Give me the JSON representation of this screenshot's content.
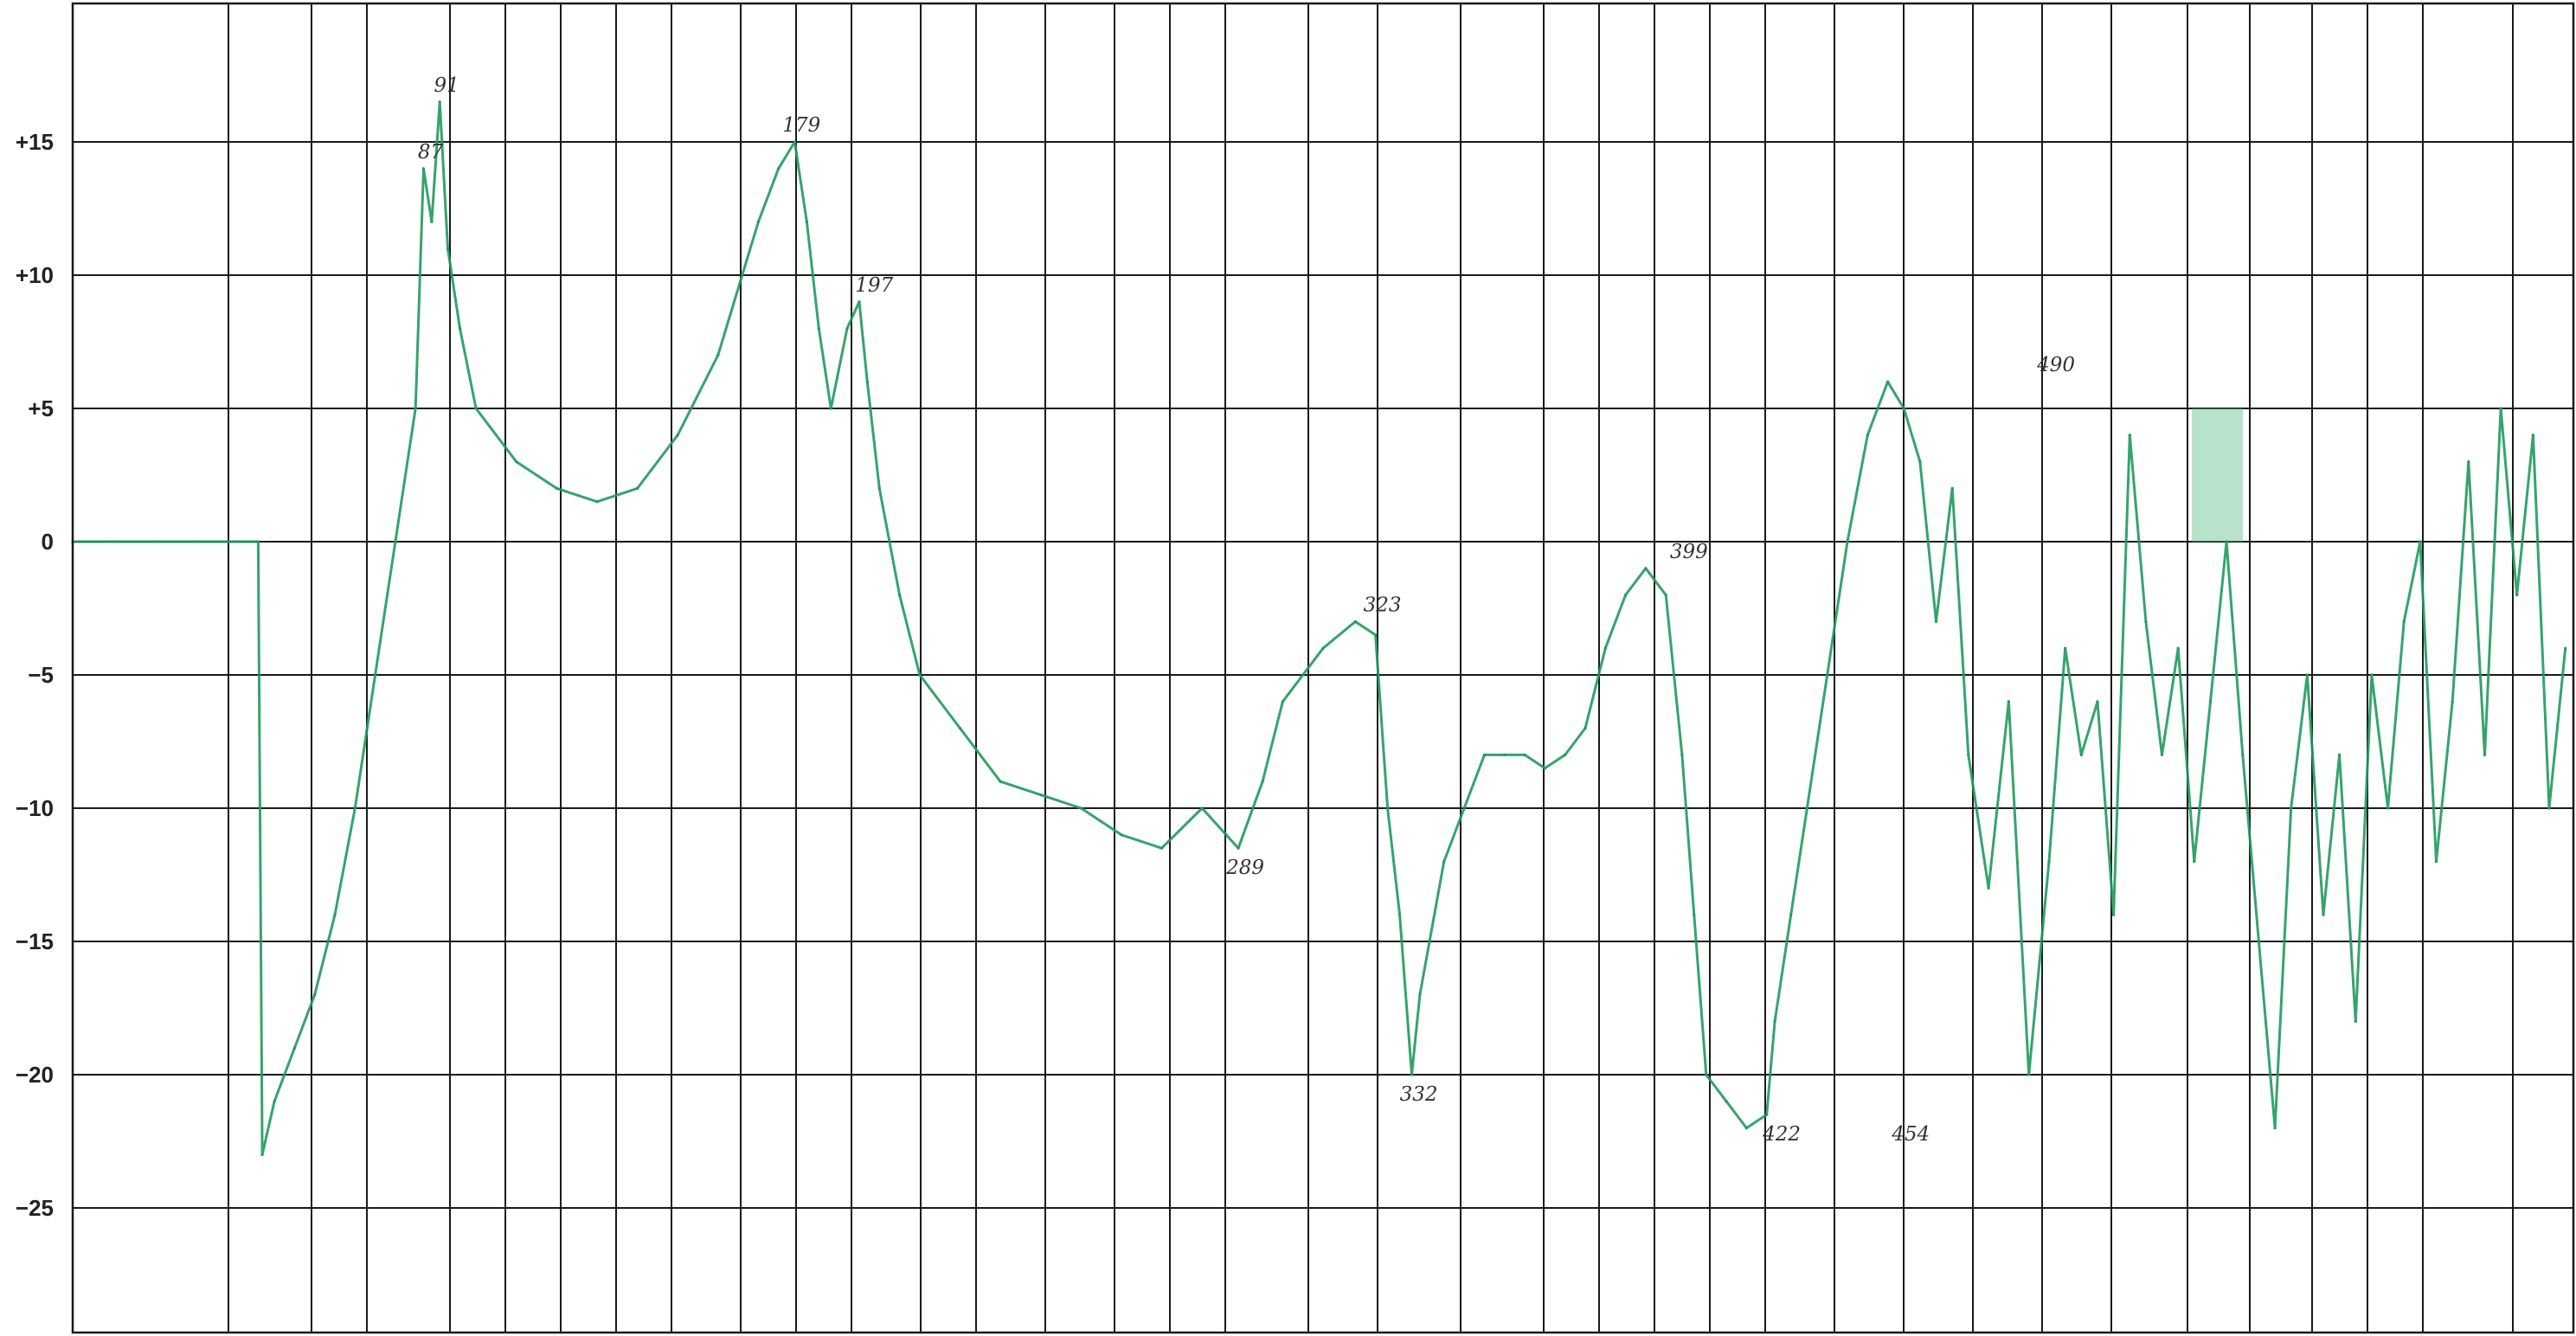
{
  "chart_data": {
    "type": "line",
    "title": "",
    "xlabel": "",
    "ylabel": "",
    "grid": true,
    "xlim": [
      0,
      620
    ],
    "ylim": [
      -29,
      20
    ],
    "yticks": [
      15,
      10,
      5,
      0,
      -5,
      -10,
      -15,
      -20,
      -25
    ],
    "ytick_labels": [
      "+15",
      "+10",
      "+5",
      "0",
      "−5",
      "−10",
      "−15",
      "−20",
      "−25"
    ],
    "series": [
      {
        "color": "#1f9a5c",
        "x": [
          0,
          10,
          20,
          30,
          40,
          46,
          47,
          50,
          55,
          60,
          65,
          70,
          75,
          80,
          85,
          87,
          89,
          91,
          93,
          96,
          100,
          110,
          120,
          130,
          140,
          150,
          160,
          170,
          175,
          179,
          182,
          185,
          188,
          192,
          195,
          197,
          200,
          205,
          210,
          220,
          230,
          240,
          250,
          260,
          270,
          280,
          289,
          295,
          300,
          310,
          318,
          323,
          326,
          329,
          332,
          334,
          340,
          350,
          355,
          360,
          365,
          370,
          375,
          380,
          385,
          390,
          395,
          399,
          402,
          405,
          410,
          415,
          420,
          422,
          426,
          430,
          435,
          440,
          445,
          450,
          454,
          458,
          462,
          466,
          470,
          475,
          480,
          485,
          490,
          494,
          498,
          502,
          506,
          510,
          514,
          518,
          522,
          526,
          530,
          534,
          538,
          542,
          546,
          550,
          554,
          558,
          562,
          566,
          570,
          574,
          578,
          582,
          586,
          590,
          594,
          598,
          602,
          606,
          610,
          614,
          618
        ],
        "y": [
          0,
          0,
          0,
          0,
          0,
          0,
          -23,
          -21,
          -19,
          -17,
          -14,
          -10,
          -5,
          0,
          5,
          14,
          12,
          16.5,
          11,
          8,
          5,
          3,
          2,
          1.5,
          2,
          4,
          7,
          12,
          14,
          15,
          12,
          8,
          5,
          8,
          9,
          6,
          2,
          -2,
          -5,
          -7,
          -9,
          -9.5,
          -10,
          -11,
          -11.5,
          -10,
          -11.5,
          -9,
          -6,
          -4,
          -3,
          -3.5,
          -10,
          -14,
          -20,
          -17,
          -12,
          -8,
          -8,
          -8,
          -8.5,
          -8,
          -7,
          -4,
          -2,
          -1,
          -2,
          -8,
          -14,
          -20,
          -21,
          -22,
          -21.5,
          -18,
          -14,
          -10,
          -5,
          0,
          4,
          6,
          5,
          3,
          -3,
          2,
          -8,
          -13,
          -6,
          -20,
          -12,
          -4,
          -8,
          -6,
          -14,
          4,
          -3,
          -8,
          -4,
          -12,
          -6,
          0,
          -8,
          -15,
          -22,
          -10,
          -5,
          -14,
          -8,
          -18,
          -5,
          -10,
          -3,
          0,
          -12,
          -6,
          3,
          -8,
          5,
          -2,
          4,
          -10,
          -4
        ]
      }
    ],
    "annotations": [
      {
        "x": 87,
        "y": 14,
        "text": "87"
      },
      {
        "x": 91,
        "y": 16.5,
        "text": "91"
      },
      {
        "x": 179,
        "y": 15,
        "text": "179"
      },
      {
        "x": 197,
        "y": 9,
        "text": "197"
      },
      {
        "x": 289,
        "y": -11.5,
        "text": "289"
      },
      {
        "x": 323,
        "y": -3,
        "text": "323"
      },
      {
        "x": 332,
        "y": -20,
        "text": "332"
      },
      {
        "x": 399,
        "y": -1,
        "text": "399"
      },
      {
        "x": 422,
        "y": -21.5,
        "text": "422"
      },
      {
        "x": 454,
        "y": -21.5,
        "text": "454"
      },
      {
        "x": 490,
        "y": 6,
        "text": "490"
      }
    ]
  }
}
